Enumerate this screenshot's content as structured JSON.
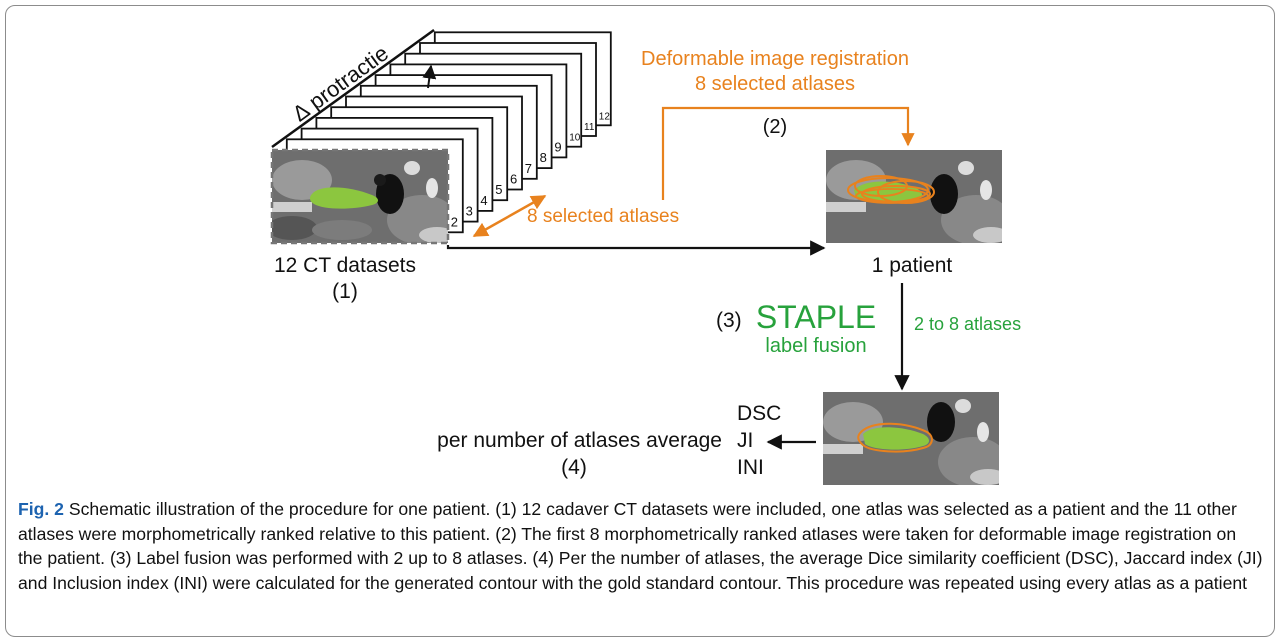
{
  "figure": {
    "dataset_label": "12 CT datasets",
    "step1": "(1)",
    "axis_label": "∆ protractie",
    "stack_numbers": [
      "2",
      "3",
      "4",
      "5",
      "6",
      "7",
      "8",
      "9",
      "10",
      "11",
      "12"
    ],
    "selected_atlases": "8 selected atlases",
    "registration_line1": "Deformable image registration",
    "registration_line2": "8 selected atlases",
    "step2": "(2)",
    "patient_label": "1 patient",
    "step3": "(3)",
    "staple": "STAPLE",
    "label_fusion": "label fusion",
    "atlas_range": "2 to 8 atlases",
    "metrics": [
      "DSC",
      "JI",
      "INI"
    ],
    "average_label": "per number of atlases average",
    "step4": "(4)"
  },
  "caption": {
    "fig_number": "Fig. 2",
    "text": " Schematic illustration of the procedure for one patient. (1) 12 cadaver CT datasets were included, one atlas was selected as a patient and the 11 other atlases were morphometrically ranked relative to this patient. (2) The first 8 morphometrically ranked atlases were taken for deformable image registration on the patient. (3) Label fusion was performed with 2 up to 8 atlases. (4) Per the number of atlases, the average Dice similarity coefficient (DSC), Jaccard index (JI) and Inclusion index (INI) were calculated for the generated contour with the gold standard contour. This procedure was repeated using every atlas as a patient"
  },
  "colors": {
    "orange": "#e8821e",
    "green": "#27a23c",
    "lime": "#8cc63f",
    "frame": "#8c8c8c",
    "figno": "#1d63b0"
  }
}
